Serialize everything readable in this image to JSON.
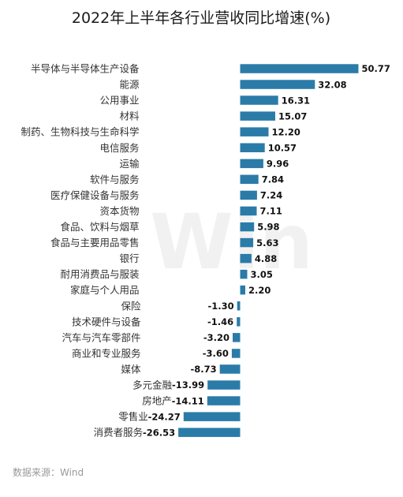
{
  "chart_data": {
    "type": "bar",
    "orientation": "horizontal",
    "title": "2022年上半年各行业营收同比增速(%)",
    "categories": [
      "半导体与半导体生产设备",
      "能源",
      "公用事业",
      "材料",
      "制药、生物科技与生命科学",
      "电信服务",
      "运输",
      "软件与服务",
      "医疗保健设备与服务",
      "资本货物",
      "食品、饮料与烟草",
      "食品与主要用品零售",
      "银行",
      "耐用消费品与服装",
      "家庭与个人用品",
      "保险",
      "技术硬件与设备",
      "汽车与汽车零部件",
      "商业和专业服务",
      "媒体",
      "多元金融",
      "房地产",
      "零售业",
      "消费者服务"
    ],
    "values": [
      50.77,
      32.08,
      16.31,
      15.07,
      12.2,
      10.57,
      9.96,
      7.84,
      7.24,
      7.11,
      5.98,
      5.63,
      4.88,
      3.05,
      2.2,
      -1.3,
      -1.46,
      -3.2,
      -3.6,
      -8.73,
      -13.99,
      -14.11,
      -24.27,
      -26.53
    ],
    "value_labels": [
      "50.77",
      "32.08",
      "16.31",
      "15.07",
      "12.20",
      "10.57",
      "9.96",
      "7.84",
      "7.24",
      "7.11",
      "5.98",
      "5.63",
      "4.88",
      "3.05",
      "2.20",
      "-1.30",
      "-1.46",
      "-3.20",
      "-3.60",
      "-8.73",
      "-13.99",
      "-14.11",
      "-24.27",
      "-26.53"
    ],
    "bar_color": "#2b7ba8",
    "grid": false,
    "legend": "none"
  },
  "source": "数据来源：Wind",
  "watermark": "Win"
}
